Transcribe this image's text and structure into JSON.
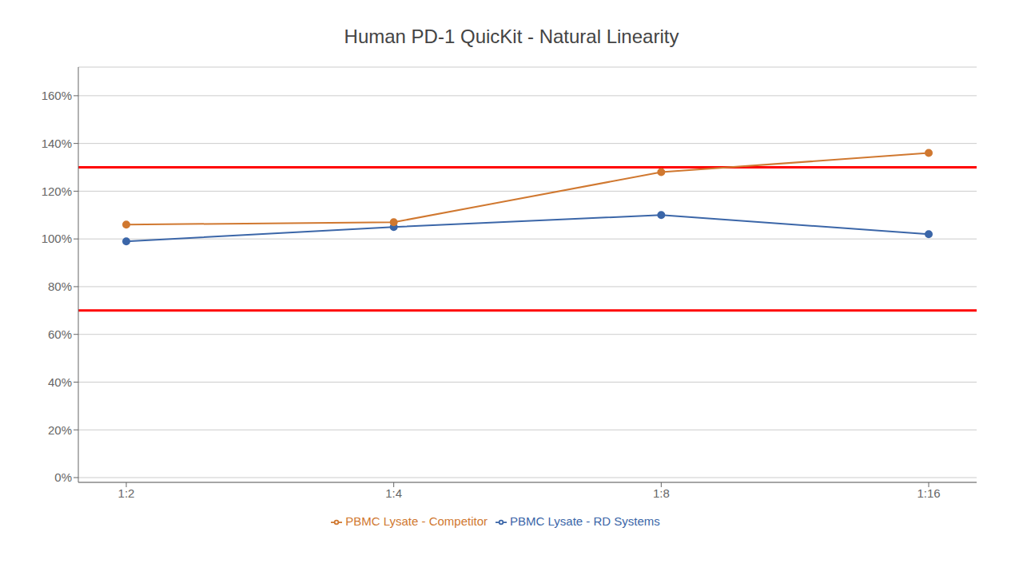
{
  "chart_data": {
    "type": "line",
    "title": "Human PD-1 QuicKit - Natural Linearity",
    "categories": [
      "1:2",
      "1:4",
      "1:8",
      "1:16"
    ],
    "series": [
      {
        "name": "PBMC Lysate - RD Systems",
        "color": "#3B66A8",
        "values": [
          99,
          105,
          110,
          102
        ]
      },
      {
        "name": "PBMC Lysate - Competitor",
        "color": "#D07830",
        "values": [
          106,
          107,
          128,
          136
        ]
      }
    ],
    "reference_lines": [
      {
        "value": 130,
        "color": "#FF0000"
      },
      {
        "value": 70,
        "color": "#FF0000"
      }
    ],
    "ylim": [
      -2,
      172
    ],
    "yticks": [
      {
        "value": 0,
        "label": "0%"
      },
      {
        "value": 20,
        "label": "20%"
      },
      {
        "value": 40,
        "label": "40%"
      },
      {
        "value": 60,
        "label": "60%"
      },
      {
        "value": 80,
        "label": "80%"
      },
      {
        "value": 100,
        "label": "100%"
      },
      {
        "value": 120,
        "label": "120%"
      },
      {
        "value": 140,
        "label": "140%"
      },
      {
        "value": 160,
        "label": "160%"
      }
    ],
    "grid": true,
    "legend": "bottom",
    "marker": "circle"
  }
}
